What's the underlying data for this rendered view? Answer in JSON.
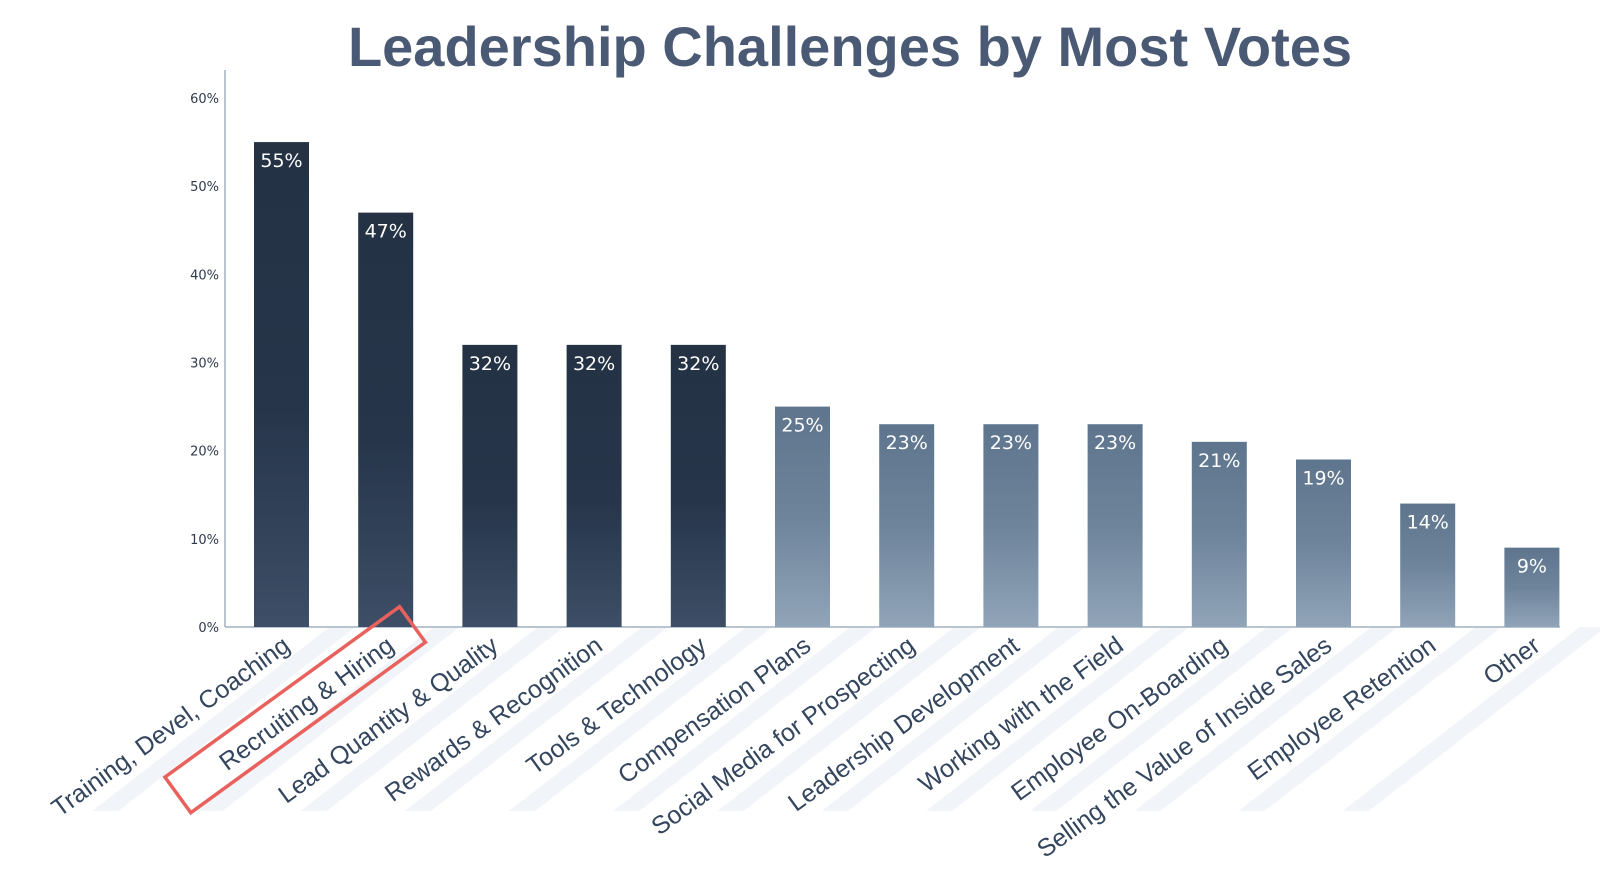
{
  "chart_data": {
    "type": "bar",
    "title": "Leadership Challenges by Most Votes",
    "ylim": [
      0,
      60
    ],
    "yticks": [
      "0%",
      "10%",
      "20%",
      "30%",
      "40%",
      "50%",
      "60%"
    ],
    "categories": [
      "Training, Devel, Coaching",
      "Recruiting & Hiring",
      "Lead Quantity & Quality",
      "Rewards & Recognition",
      "Tools & Technology",
      "Compensation Plans",
      "Social Media for Prospecting",
      "Leadership Development",
      "Working with the Field",
      "Employee On-Boarding",
      "Selling the Value of Inside Sales",
      "Employee Retention",
      "Other"
    ],
    "values": [
      55,
      47,
      32,
      32,
      32,
      25,
      23,
      23,
      23,
      21,
      19,
      14,
      9
    ],
    "value_labels": [
      "55%",
      "47%",
      "32%",
      "32%",
      "32%",
      "25%",
      "23%",
      "23%",
      "23%",
      "21%",
      "19%",
      "14%",
      "9%"
    ],
    "highlighted_category": "Recruiting & Hiring",
    "grid": false,
    "legend": "none"
  },
  "colors": {
    "title": "#4a5a74",
    "bar_dark_top": "#243244",
    "bar_dark_bottom": "#3d4e66",
    "bar_light_top": "#5e758d",
    "bar_light_bottom": "#91a4b8",
    "axis": "#b8c4d0",
    "highlight": "#e8615c"
  }
}
